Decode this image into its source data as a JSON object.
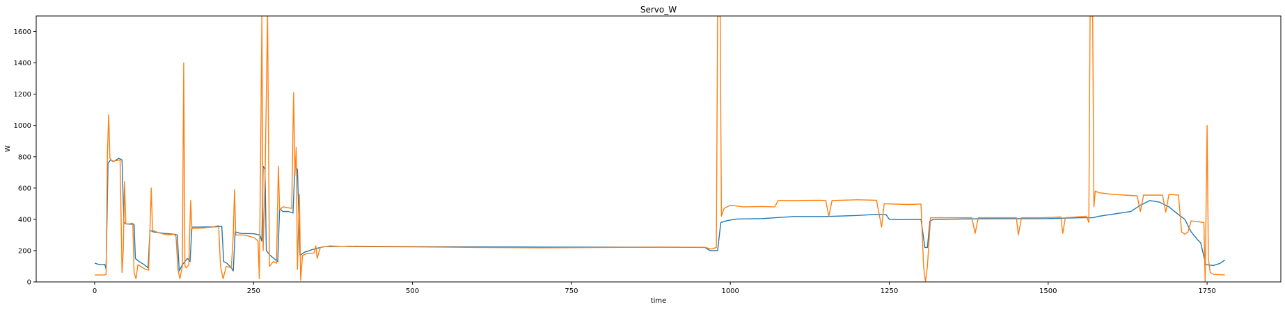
{
  "chart_data": {
    "type": "line",
    "title": "Servo_W",
    "xlabel": "time",
    "ylabel": "W",
    "xlim": [
      -92,
      1866
    ],
    "ylim": [
      0,
      1700
    ],
    "xticks": [
      0,
      250,
      500,
      750,
      1000,
      1250,
      1500,
      1750
    ],
    "yticks": [
      0,
      200,
      400,
      600,
      800,
      1000,
      1200,
      1400,
      1600
    ],
    "grid": false,
    "legend": "none",
    "series": [
      {
        "color": "#1f77b4",
        "points": [
          [
            0,
            120
          ],
          [
            8,
            110
          ],
          [
            16,
            112
          ],
          [
            18,
            80
          ],
          [
            21,
            760
          ],
          [
            25,
            780
          ],
          [
            30,
            770
          ],
          [
            38,
            790
          ],
          [
            43,
            780
          ],
          [
            46,
            380
          ],
          [
            50,
            370
          ],
          [
            62,
            368
          ],
          [
            64,
            150
          ],
          [
            70,
            130
          ],
          [
            78,
            110
          ],
          [
            84,
            90
          ],
          [
            87,
            330
          ],
          [
            92,
            320
          ],
          [
            110,
            310
          ],
          [
            125,
            305
          ],
          [
            130,
            300
          ],
          [
            133,
            70
          ],
          [
            138,
            110
          ],
          [
            146,
            150
          ],
          [
            150,
            130
          ],
          [
            153,
            350
          ],
          [
            160,
            350
          ],
          [
            190,
            352
          ],
          [
            200,
            355
          ],
          [
            203,
            130
          ],
          [
            208,
            120
          ],
          [
            215,
            90
          ],
          [
            218,
            70
          ],
          [
            221,
            320
          ],
          [
            230,
            310
          ],
          [
            250,
            308
          ],
          [
            260,
            300
          ],
          [
            263,
            260
          ],
          [
            265,
            740
          ],
          [
            268,
            720
          ],
          [
            270,
            200
          ],
          [
            276,
            170
          ],
          [
            285,
            140
          ],
          [
            288,
            130
          ],
          [
            291,
            470
          ],
          [
            296,
            450
          ],
          [
            305,
            450
          ],
          [
            312,
            440
          ],
          [
            315,
            740
          ],
          [
            319,
            720
          ],
          [
            323,
            170
          ],
          [
            330,
            190
          ],
          [
            345,
            210
          ],
          [
            360,
            225
          ],
          [
            400,
            228
          ],
          [
            500,
            226
          ],
          [
            600,
            224
          ],
          [
            700,
            223
          ],
          [
            800,
            222
          ],
          [
            900,
            222
          ],
          [
            960,
            220
          ],
          [
            968,
            200
          ],
          [
            980,
            200
          ],
          [
            985,
            380
          ],
          [
            995,
            392
          ],
          [
            1010,
            402
          ],
          [
            1050,
            405
          ],
          [
            1100,
            418
          ],
          [
            1150,
            418
          ],
          [
            1200,
            425
          ],
          [
            1230,
            432
          ],
          [
            1245,
            430
          ],
          [
            1250,
            400
          ],
          [
            1270,
            398
          ],
          [
            1300,
            400
          ],
          [
            1306,
            220
          ],
          [
            1310,
            220
          ],
          [
            1314,
            390
          ],
          [
            1320,
            400
          ],
          [
            1400,
            404
          ],
          [
            1500,
            405
          ],
          [
            1550,
            410
          ],
          [
            1570,
            410
          ],
          [
            1580,
            420
          ],
          [
            1600,
            432
          ],
          [
            1630,
            450
          ],
          [
            1645,
            490
          ],
          [
            1660,
            520
          ],
          [
            1675,
            510
          ],
          [
            1690,
            480
          ],
          [
            1705,
            430
          ],
          [
            1715,
            400
          ],
          [
            1725,
            320
          ],
          [
            1735,
            270
          ],
          [
            1740,
            250
          ],
          [
            1748,
            110
          ],
          [
            1760,
            105
          ],
          [
            1770,
            118
          ],
          [
            1778,
            140
          ]
        ]
      },
      {
        "color": "#ff7f0e",
        "points": [
          [
            0,
            45
          ],
          [
            15,
            44
          ],
          [
            18,
            48
          ],
          [
            20,
            820
          ],
          [
            22,
            1070
          ],
          [
            24,
            790
          ],
          [
            28,
            770
          ],
          [
            40,
            780
          ],
          [
            43,
            60
          ],
          [
            45,
            200
          ],
          [
            47,
            640
          ],
          [
            49,
            370
          ],
          [
            55,
            372
          ],
          [
            60,
            375
          ],
          [
            62,
            60
          ],
          [
            65,
            20
          ],
          [
            68,
            110
          ],
          [
            72,
            100
          ],
          [
            80,
            80
          ],
          [
            85,
            75
          ],
          [
            87,
            340
          ],
          [
            89,
            600
          ],
          [
            91,
            330
          ],
          [
            100,
            315
          ],
          [
            115,
            300
          ],
          [
            125,
            305
          ],
          [
            128,
            290
          ],
          [
            131,
            80
          ],
          [
            134,
            20
          ],
          [
            138,
            100
          ],
          [
            140,
            1400
          ],
          [
            142,
            100
          ],
          [
            144,
            90
          ],
          [
            148,
            110
          ],
          [
            151,
            520
          ],
          [
            153,
            340
          ],
          [
            170,
            345
          ],
          [
            185,
            350
          ],
          [
            195,
            360
          ],
          [
            198,
            100
          ],
          [
            202,
            20
          ],
          [
            207,
            100
          ],
          [
            215,
            90
          ],
          [
            218,
            300
          ],
          [
            220,
            590
          ],
          [
            222,
            300
          ],
          [
            235,
            300
          ],
          [
            245,
            290
          ],
          [
            252,
            280
          ],
          [
            257,
            260
          ],
          [
            259,
            20
          ],
          [
            261,
            800
          ],
          [
            263,
            1700
          ],
          [
            265,
            200
          ],
          [
            268,
            650
          ],
          [
            272,
            1700
          ],
          [
            275,
            100
          ],
          [
            281,
            130
          ],
          [
            286,
            120
          ],
          [
            289,
            740
          ],
          [
            291,
            460
          ],
          [
            296,
            480
          ],
          [
            310,
            470
          ],
          [
            313,
            1210
          ],
          [
            315,
            680
          ],
          [
            317,
            860
          ],
          [
            319,
            80
          ],
          [
            322,
            560
          ],
          [
            324,
            10
          ],
          [
            327,
            170
          ],
          [
            333,
            180
          ],
          [
            345,
            185
          ],
          [
            348,
            230
          ],
          [
            350,
            150
          ],
          [
            355,
            220
          ],
          [
            370,
            230
          ],
          [
            400,
            226
          ],
          [
            500,
            224
          ],
          [
            600,
            220
          ],
          [
            700,
            218
          ],
          [
            800,
            220
          ],
          [
            900,
            222
          ],
          [
            960,
            221
          ],
          [
            970,
            210
          ],
          [
            978,
            220
          ],
          [
            980,
            1700
          ],
          [
            984,
            1700
          ],
          [
            986,
            420
          ],
          [
            990,
            470
          ],
          [
            1000,
            490
          ],
          [
            1020,
            480
          ],
          [
            1050,
            482
          ],
          [
            1070,
            480
          ],
          [
            1075,
            520
          ],
          [
            1100,
            520
          ],
          [
            1140,
            522
          ],
          [
            1150,
            520
          ],
          [
            1155,
            420
          ],
          [
            1160,
            520
          ],
          [
            1200,
            525
          ],
          [
            1230,
            522
          ],
          [
            1238,
            350
          ],
          [
            1242,
            500
          ],
          [
            1280,
            495
          ],
          [
            1300,
            498
          ],
          [
            1304,
            100
          ],
          [
            1307,
            0
          ],
          [
            1310,
            100
          ],
          [
            1315,
            410
          ],
          [
            1340,
            410
          ],
          [
            1380,
            410
          ],
          [
            1385,
            310
          ],
          [
            1390,
            410
          ],
          [
            1450,
            410
          ],
          [
            1453,
            300
          ],
          [
            1458,
            410
          ],
          [
            1490,
            410
          ],
          [
            1520,
            415
          ],
          [
            1523,
            310
          ],
          [
            1527,
            410
          ],
          [
            1560,
            420
          ],
          [
            1564,
            380
          ],
          [
            1566,
            1700
          ],
          [
            1570,
            1700
          ],
          [
            1572,
            480
          ],
          [
            1574,
            580
          ],
          [
            1580,
            570
          ],
          [
            1600,
            560
          ],
          [
            1620,
            555
          ],
          [
            1640,
            550
          ],
          [
            1645,
            450
          ],
          [
            1650,
            555
          ],
          [
            1680,
            555
          ],
          [
            1685,
            445
          ],
          [
            1690,
            560
          ],
          [
            1705,
            555
          ],
          [
            1710,
            320
          ],
          [
            1715,
            305
          ],
          [
            1720,
            320
          ],
          [
            1725,
            390
          ],
          [
            1745,
            380
          ],
          [
            1747,
            0
          ],
          [
            1750,
            1000
          ],
          [
            1752,
            150
          ],
          [
            1755,
            60
          ],
          [
            1760,
            48
          ],
          [
            1778,
            45
          ]
        ]
      }
    ]
  }
}
